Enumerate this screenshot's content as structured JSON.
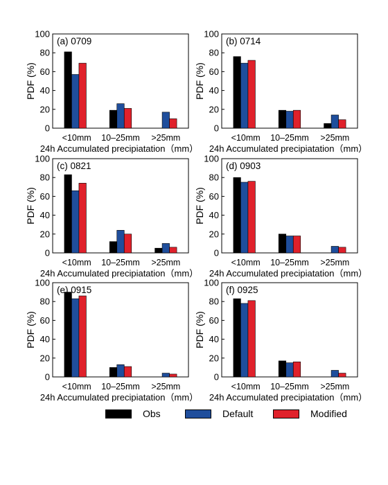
{
  "chart_data": [
    {
      "type": "bar",
      "title": "(a) 0709",
      "xlabel": "24h Accumulated precipiatation（mm）",
      "ylabel": "PDF (%)",
      "categories": [
        "<10mm",
        "10–25mm",
        ">25mm"
      ],
      "ylim": [
        0,
        100
      ],
      "yticks": [
        "0",
        "20",
        "40",
        "60",
        "80",
        "100"
      ],
      "series": [
        {
          "name": "Obs",
          "values": [
            81,
            19,
            0
          ]
        },
        {
          "name": "Default",
          "values": [
            57,
            26,
            17
          ]
        },
        {
          "name": "Modified",
          "values": [
            69,
            21,
            10
          ]
        }
      ]
    },
    {
      "type": "bar",
      "title": "(b) 0714",
      "xlabel": "24h Accumulated precipiatation（mm）",
      "ylabel": "PDF (%)",
      "categories": [
        "<10mm",
        "10–25mm",
        ">25mm"
      ],
      "ylim": [
        0,
        100
      ],
      "yticks": [
        "0",
        "20",
        "40",
        "60",
        "80",
        "100"
      ],
      "series": [
        {
          "name": "Obs",
          "values": [
            76,
            19,
            5
          ]
        },
        {
          "name": "Default",
          "values": [
            69,
            18,
            14
          ]
        },
        {
          "name": "Modified",
          "values": [
            72,
            19,
            9
          ]
        }
      ]
    },
    {
      "type": "bar",
      "title": "(c) 0821",
      "xlabel": "24h Accumulated precipiatation（mm）",
      "ylabel": "PDF (%)",
      "categories": [
        "<10mm",
        "10–25mm",
        ">25mm"
      ],
      "ylim": [
        0,
        100
      ],
      "yticks": [
        "0",
        "20",
        "40",
        "60",
        "80",
        "100"
      ],
      "series": [
        {
          "name": "Obs",
          "values": [
            83,
            12,
            5
          ]
        },
        {
          "name": "Default",
          "values": [
            66,
            24,
            10
          ]
        },
        {
          "name": "Modified",
          "values": [
            74,
            20,
            6
          ]
        }
      ]
    },
    {
      "type": "bar",
      "title": "(d) 0903",
      "xlabel": "24h Accumulated precipiatation（mm）",
      "ylabel": "PDF (%)",
      "categories": [
        "<10mm",
        "10–25mm",
        ">25mm"
      ],
      "ylim": [
        0,
        100
      ],
      "yticks": [
        "0",
        "20",
        "40",
        "60",
        "80",
        "100"
      ],
      "series": [
        {
          "name": "Obs",
          "values": [
            80,
            20,
            0
          ]
        },
        {
          "name": "Default",
          "values": [
            75,
            18,
            7
          ]
        },
        {
          "name": "Modified",
          "values": [
            76,
            18,
            6
          ]
        }
      ]
    },
    {
      "type": "bar",
      "title": "(e) 0915",
      "xlabel": "24h Accumulated precipiatation（mm）",
      "ylabel": "PDF (%)",
      "categories": [
        "<10mm",
        "10–25mm",
        ">25mm"
      ],
      "ylim": [
        0,
        100
      ],
      "yticks": [
        "0",
        "20",
        "40",
        "60",
        "80",
        "100"
      ],
      "series": [
        {
          "name": "Obs",
          "values": [
            90,
            10,
            0
          ]
        },
        {
          "name": "Default",
          "values": [
            83,
            13,
            4
          ]
        },
        {
          "name": "Modified",
          "values": [
            86,
            11,
            3
          ]
        }
      ]
    },
    {
      "type": "bar",
      "title": "(f) 0925",
      "xlabel": "24h Accumulated precipiatation（mm）",
      "ylabel": "PDF (%)",
      "categories": [
        "<10mm",
        "10–25mm",
        ">25mm"
      ],
      "ylim": [
        0,
        100
      ],
      "yticks": [
        "0",
        "20",
        "40",
        "60",
        "80",
        "100"
      ],
      "series": [
        {
          "name": "Obs",
          "values": [
            83,
            17,
            0
          ]
        },
        {
          "name": "Default",
          "values": [
            78,
            15,
            7
          ]
        },
        {
          "name": "Modified",
          "values": [
            81,
            16,
            4
          ]
        }
      ]
    }
  ],
  "legend": {
    "position": "bottom",
    "items": [
      {
        "label": "Obs",
        "color": "#000000"
      },
      {
        "label": "Default",
        "color": "#1f4e9c"
      },
      {
        "label": "Modified",
        "color": "#e0212b"
      }
    ]
  },
  "colors": {
    "obs": "#000000",
    "default": "#1f4e9c",
    "modified": "#e0212b"
  }
}
